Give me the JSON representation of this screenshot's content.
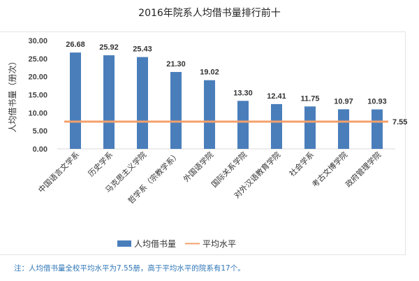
{
  "chart_data": {
    "type": "bar",
    "title": "2016年院系人均借书量排行前十",
    "ylabel": "人均借书量（册次）",
    "xlabel": "",
    "ylim": [
      0,
      30
    ],
    "yticks": [
      "0.00",
      "5.00",
      "10.00",
      "15.00",
      "20.00",
      "25.00",
      "30.00"
    ],
    "categories": [
      "中国语言文学系",
      "历史学系",
      "马克思主义学院",
      "哲学系（宗教学系）",
      "外国语学院",
      "国际关系学院",
      "对外汉语教育学院",
      "社会学系",
      "考古文博学院",
      "政府管理学院"
    ],
    "series": [
      {
        "name": "人均借书量",
        "type": "bar",
        "color": "#4a7ebb",
        "values": [
          26.68,
          25.92,
          25.43,
          21.3,
          19.02,
          13.3,
          12.41,
          11.75,
          10.97,
          10.93
        ],
        "labels": [
          "26.68",
          "25.92",
          "25.43",
          "21.30",
          "19.02",
          "13.30",
          "12.41",
          "11.75",
          "10.97",
          "10.93"
        ]
      },
      {
        "name": "平均水平",
        "type": "line",
        "color": "#f4a06b",
        "value": 7.55,
        "label": "7.55"
      }
    ],
    "grid": false,
    "legend": "bottom"
  },
  "note": "注：人均借书量全校平均水平为7.55册，高于平均水平的院系有17个。"
}
